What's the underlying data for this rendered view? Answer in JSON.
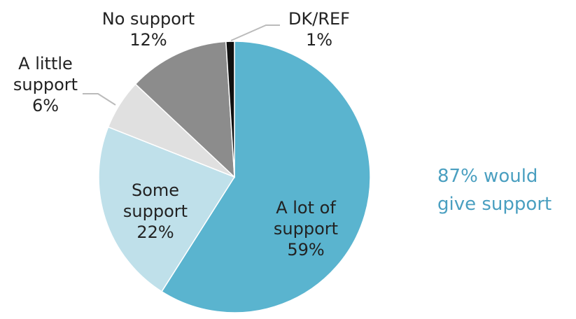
{
  "chart_data": {
    "type": "pie",
    "categories": [
      "A lot of support",
      "Some support",
      "A little support",
      "No support",
      "DK/REF"
    ],
    "values": [
      59,
      22,
      6,
      12,
      1
    ],
    "value_labels": [
      "59%",
      "22%",
      "6%",
      "12%",
      "1%"
    ],
    "colors": [
      "#5ab4cf",
      "#bfe0ea",
      "#e0e0e0",
      "#8c8c8c",
      "#111111"
    ],
    "annotation": "87% would give support"
  }
}
